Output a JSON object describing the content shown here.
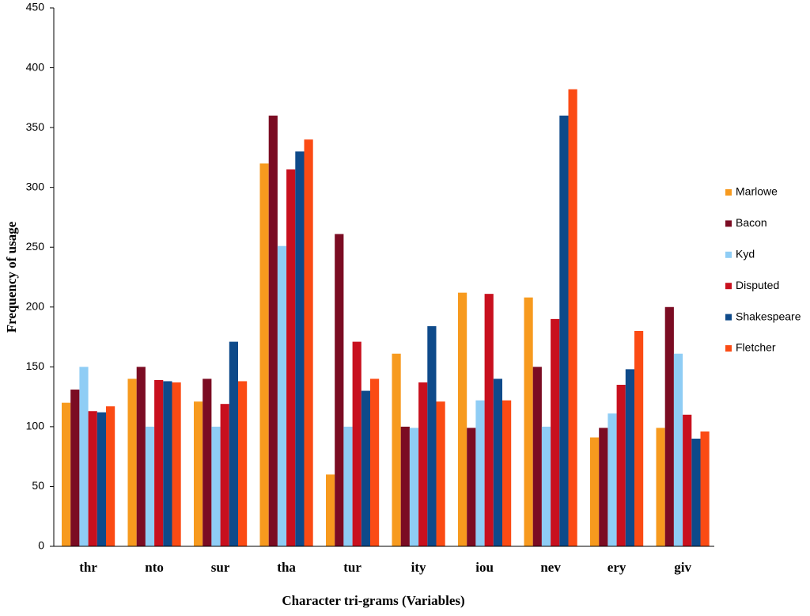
{
  "chart_data": {
    "type": "bar",
    "x_label": "Character tri-grams (Variables)",
    "y_label": "Frequency of usage",
    "categories": [
      "thr",
      "nto",
      "sur",
      "tha",
      "tur",
      "ity",
      "iou",
      "nev",
      "ery",
      "giv"
    ],
    "series": [
      {
        "name": "Marlowe",
        "color": "#f79a1e",
        "values": [
          120,
          140,
          121,
          320,
          60,
          161,
          212,
          208,
          91,
          99
        ]
      },
      {
        "name": "Bacon",
        "color": "#7b0c23",
        "values": [
          131,
          150,
          140,
          360,
          261,
          100,
          99,
          150,
          99,
          200
        ]
      },
      {
        "name": "Kyd",
        "color": "#8fcdf5",
        "values": [
          150,
          100,
          100,
          251,
          100,
          99,
          122,
          100,
          111,
          161
        ]
      },
      {
        "name": "Disputed",
        "color": "#c8101e",
        "values": [
          113,
          139,
          119,
          315,
          171,
          137,
          211,
          190,
          135,
          110
        ]
      },
      {
        "name": "Shakespeare",
        "color": "#0e4a8a",
        "values": [
          112,
          138,
          171,
          330,
          130,
          184,
          140,
          360,
          148,
          90
        ]
      },
      {
        "name": "Fletcher",
        "color": "#fb4b14",
        "values": [
          117,
          137,
          138,
          340,
          140,
          121,
          122,
          382,
          180,
          96
        ]
      }
    ],
    "ylim": [
      0,
      450
    ],
    "yticks": [
      0,
      50,
      100,
      150,
      200,
      250,
      300,
      350,
      400,
      450
    ],
    "grid": false,
    "legend": "right"
  }
}
